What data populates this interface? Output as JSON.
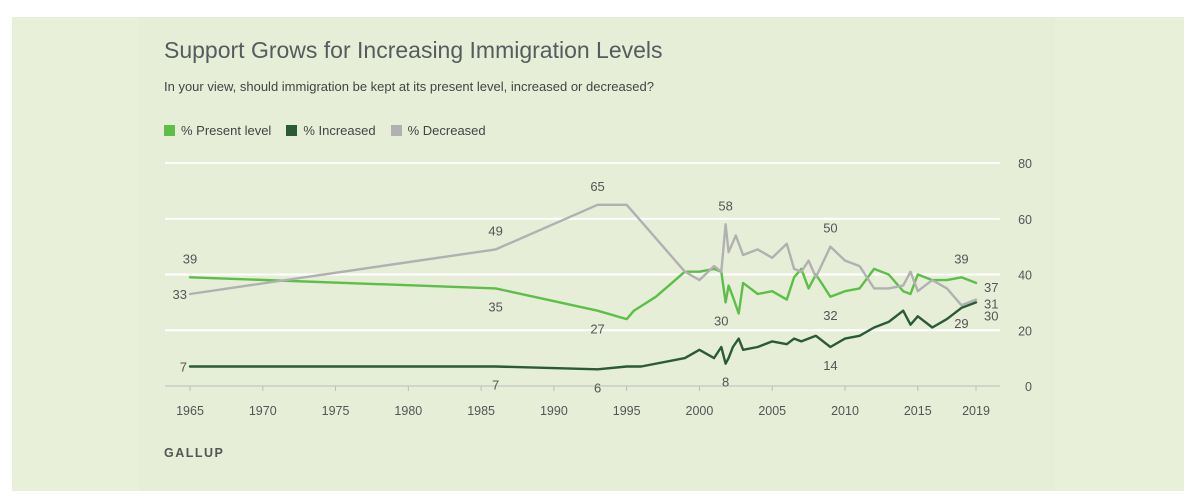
{
  "title": "Support Grows for Increasing Immigration Levels",
  "subtitle": "In your view, should immigration be kept at its present level, increased or decreased?",
  "source": "GALLUP",
  "colors": {
    "present": "#5cbf47",
    "increased": "#2b5a36",
    "decreased": "#b1b1b1",
    "panel_bg": "#e6eed8",
    "grid": "#ffffff"
  },
  "legend": [
    {
      "label": "% Present level",
      "color": "#5cbf47"
    },
    {
      "label": "% Increased",
      "color": "#2b5a36"
    },
    {
      "label": "% Decreased",
      "color": "#b1b1b1"
    }
  ],
  "chart_data": {
    "type": "line",
    "title": "Support Grows for Increasing Immigration Levels",
    "subtitle": "In your view, should immigration be kept at its present level, increased or decreased?",
    "xlabel": "",
    "ylabel": "",
    "xlim": [
      1965,
      2019
    ],
    "ylim": [
      0,
      80
    ],
    "x_ticks": [
      1965,
      1970,
      1975,
      1980,
      1985,
      1990,
      1995,
      2000,
      2005,
      2010,
      2015,
      2019
    ],
    "y_ticks": [
      0,
      20,
      40,
      60,
      80
    ],
    "grid": true,
    "legend_position": "top-left",
    "series": [
      {
        "name": "% Present level",
        "color": "#5cbf47",
        "points": [
          [
            1965,
            39
          ],
          [
            1986,
            35
          ],
          [
            1993,
            27
          ],
          [
            1995,
            24
          ],
          [
            1995.5,
            27
          ],
          [
            1997,
            32
          ],
          [
            1999,
            41
          ],
          [
            2000,
            41
          ],
          [
            2001,
            42
          ],
          [
            2001.5,
            41
          ],
          [
            2001.8,
            30
          ],
          [
            2002,
            36
          ],
          [
            2002.3,
            32
          ],
          [
            2002.7,
            26
          ],
          [
            2003,
            37
          ],
          [
            2003.5,
            35
          ],
          [
            2004,
            33
          ],
          [
            2005,
            34
          ],
          [
            2006,
            31
          ],
          [
            2006.5,
            39
          ],
          [
            2007,
            42
          ],
          [
            2007.5,
            35
          ],
          [
            2008,
            40
          ],
          [
            2008.5,
            36
          ],
          [
            2009,
            32
          ],
          [
            2010,
            34
          ],
          [
            2011,
            35
          ],
          [
            2012,
            42
          ],
          [
            2013,
            40
          ],
          [
            2014,
            34
          ],
          [
            2014.5,
            33
          ],
          [
            2015,
            40
          ],
          [
            2016,
            38
          ],
          [
            2017,
            38
          ],
          [
            2018,
            39
          ],
          [
            2019,
            37
          ]
        ]
      },
      {
        "name": "% Increased",
        "color": "#2b5a36",
        "points": [
          [
            1965,
            7
          ],
          [
            1986,
            7
          ],
          [
            1993,
            6
          ],
          [
            1995,
            7
          ],
          [
            1996,
            7
          ],
          [
            1999,
            10
          ],
          [
            2000,
            13
          ],
          [
            2001,
            10
          ],
          [
            2001.5,
            14
          ],
          [
            2001.8,
            8
          ],
          [
            2002,
            10
          ],
          [
            2002.3,
            14
          ],
          [
            2002.7,
            17
          ],
          [
            2003,
            13
          ],
          [
            2004,
            14
          ],
          [
            2005,
            16
          ],
          [
            2006,
            15
          ],
          [
            2006.5,
            17
          ],
          [
            2007,
            16
          ],
          [
            2008,
            18
          ],
          [
            2009,
            14
          ],
          [
            2010,
            17
          ],
          [
            2011,
            18
          ],
          [
            2012,
            21
          ],
          [
            2013,
            23
          ],
          [
            2014,
            27
          ],
          [
            2014.5,
            22
          ],
          [
            2015,
            25
          ],
          [
            2016,
            21
          ],
          [
            2017,
            24
          ],
          [
            2018,
            28
          ],
          [
            2019,
            30
          ]
        ]
      },
      {
        "name": "% Decreased",
        "color": "#b1b1b1",
        "points": [
          [
            1965,
            33
          ],
          [
            1986,
            49
          ],
          [
            1993,
            65
          ],
          [
            1995,
            65
          ],
          [
            1999,
            41
          ],
          [
            2000,
            38
          ],
          [
            2001,
            43
          ],
          [
            2001.5,
            41
          ],
          [
            2001.8,
            58
          ],
          [
            2002,
            48
          ],
          [
            2002.5,
            54
          ],
          [
            2003,
            47
          ],
          [
            2004,
            49
          ],
          [
            2005,
            46
          ],
          [
            2006,
            51
          ],
          [
            2006.5,
            42
          ],
          [
            2007,
            41
          ],
          [
            2007.5,
            45
          ],
          [
            2008,
            39
          ],
          [
            2009,
            50
          ],
          [
            2010,
            45
          ],
          [
            2011,
            43
          ],
          [
            2012,
            35
          ],
          [
            2013,
            35
          ],
          [
            2014,
            36
          ],
          [
            2014.5,
            41
          ],
          [
            2015,
            34
          ],
          [
            2016,
            38
          ],
          [
            2017,
            35
          ],
          [
            2018,
            29
          ],
          [
            2019,
            31
          ]
        ]
      }
    ],
    "annotations": [
      {
        "text": "39",
        "x": 1965,
        "y": 39,
        "pos": "above"
      },
      {
        "text": "33",
        "x": 1965,
        "y": 33,
        "pos": "left"
      },
      {
        "text": "7",
        "x": 1965,
        "y": 7,
        "pos": "left"
      },
      {
        "text": "49",
        "x": 1986,
        "y": 49,
        "pos": "above"
      },
      {
        "text": "35",
        "x": 1986,
        "y": 35,
        "pos": "below"
      },
      {
        "text": "7",
        "x": 1986,
        "y": 7,
        "pos": "below"
      },
      {
        "text": "65",
        "x": 1993,
        "y": 65,
        "pos": "above"
      },
      {
        "text": "27",
        "x": 1993,
        "y": 27,
        "pos": "below"
      },
      {
        "text": "6",
        "x": 1993,
        "y": 6,
        "pos": "below"
      },
      {
        "text": "58",
        "x": 2001.8,
        "y": 58,
        "pos": "above"
      },
      {
        "text": "30",
        "x": 2001.5,
        "y": 30,
        "pos": "below"
      },
      {
        "text": "8",
        "x": 2001.8,
        "y": 8,
        "pos": "below"
      },
      {
        "text": "50",
        "x": 2009,
        "y": 50,
        "pos": "above"
      },
      {
        "text": "32",
        "x": 2009,
        "y": 32,
        "pos": "below"
      },
      {
        "text": "14",
        "x": 2009,
        "y": 14,
        "pos": "below"
      },
      {
        "text": "39",
        "x": 2018,
        "y": 39,
        "pos": "above"
      },
      {
        "text": "37",
        "x": 2019,
        "y": 37,
        "pos": "right"
      },
      {
        "text": "31",
        "x": 2019,
        "y": 31,
        "pos": "right"
      },
      {
        "text": "30",
        "x": 2019,
        "y": 30,
        "pos": "right-low"
      },
      {
        "text": "29",
        "x": 2018,
        "y": 29,
        "pos": "below"
      }
    ]
  }
}
